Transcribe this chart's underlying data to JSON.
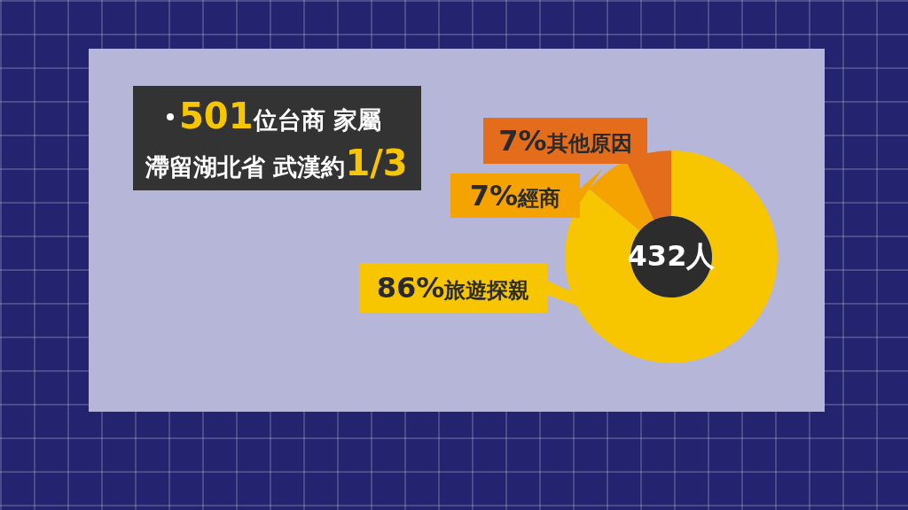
{
  "chart_data": {
    "type": "donut",
    "title": "501位台商 家屬",
    "subtitle": "滯留湖北省 武漢約1/3",
    "categories": [
      "旅遊探親",
      "經商",
      "其他原因"
    ],
    "values": [
      86,
      7,
      7
    ],
    "colors": [
      "#f7c600",
      "#f5a300",
      "#e46d1c"
    ],
    "value_labels": [
      "86%",
      "7%",
      "7%"
    ],
    "annotations": [
      "432人"
    ]
  }
}
